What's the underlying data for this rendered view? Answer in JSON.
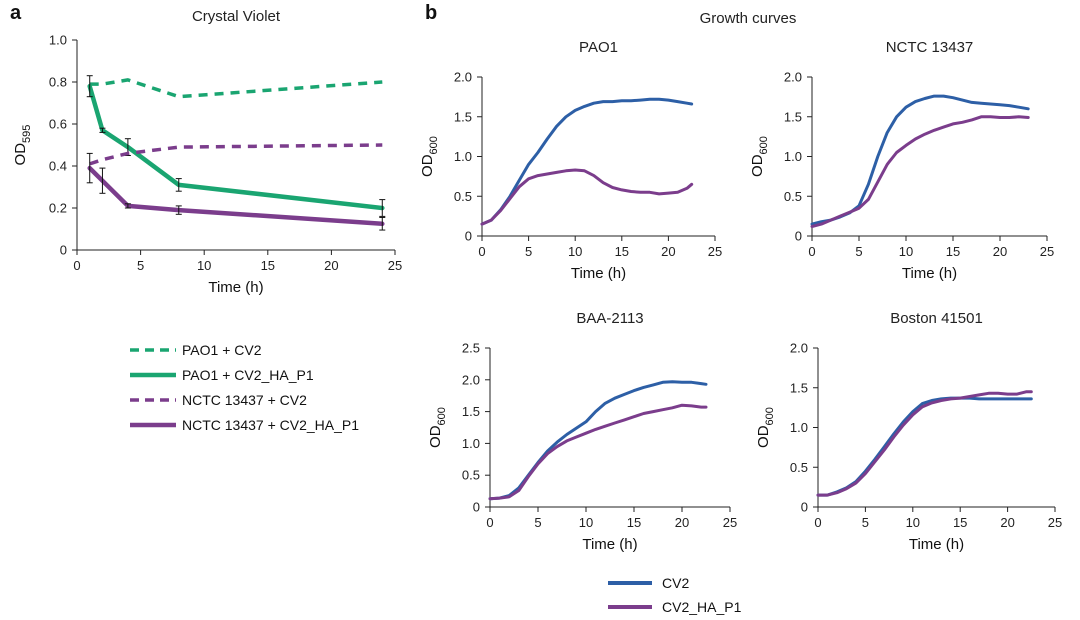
{
  "panel_a_letter": "a",
  "panel_b_letter": "b",
  "panel_b_title": "Growth curves",
  "colors": {
    "green": "#1aa571",
    "purple": "#7b3d8c",
    "blue": "#2d5fa6"
  },
  "legend_a": [
    {
      "label": "PAO1 + CV2",
      "color": "#1aa571",
      "dashed": true
    },
    {
      "label": "PAO1 + CV2_HA_P1",
      "color": "#1aa571",
      "dashed": false
    },
    {
      "label": "NCTC 13437 + CV2",
      "color": "#7b3d8c",
      "dashed": true
    },
    {
      "label": "NCTC 13437 + CV2_HA_P1",
      "color": "#7b3d8c",
      "dashed": false
    }
  ],
  "legend_b": [
    {
      "label": "CV2",
      "color": "#2d5fa6"
    },
    {
      "label": "CV2_HA_P1",
      "color": "#7b3d8c"
    }
  ],
  "chart_data": [
    {
      "type": "line",
      "title": "Crystal Violet",
      "xlabel": "Time (h)",
      "ylabel_main": "OD",
      "ylabel_sub": "595",
      "xlim": [
        0,
        25
      ],
      "ylim": [
        0,
        1.0
      ],
      "xticks": [
        "0",
        "5",
        "10",
        "15",
        "20",
        "25"
      ],
      "yticks": [
        "0",
        "0.2",
        "0.4",
        "0.6",
        "0.8",
        "1.0"
      ],
      "series": [
        {
          "name": "PAO1 + CV2",
          "color": "#1aa571",
          "dashed": true,
          "x": [
            1,
            2,
            4,
            8,
            24
          ],
          "y": [
            0.79,
            0.79,
            0.81,
            0.73,
            0.8
          ]
        },
        {
          "name": "PAO1 + CV2_HA_P1",
          "color": "#1aa571",
          "dashed": false,
          "x": [
            1,
            2,
            4,
            8,
            24
          ],
          "y": [
            0.78,
            0.57,
            0.49,
            0.31,
            0.2
          ],
          "err": [
            0.05,
            0.01,
            0.04,
            0.03,
            0.04
          ]
        },
        {
          "name": "NCTC 13437 + CV2",
          "color": "#7b3d8c",
          "dashed": true,
          "x": [
            1,
            2,
            4,
            8,
            24
          ],
          "y": [
            0.41,
            0.43,
            0.46,
            0.49,
            0.5
          ]
        },
        {
          "name": "NCTC 13437 + CV2_HA_P1",
          "color": "#7b3d8c",
          "dashed": false,
          "x": [
            1,
            2,
            4,
            8,
            24
          ],
          "y": [
            0.39,
            0.33,
            0.21,
            0.19,
            0.125
          ],
          "err": [
            0.07,
            0.06,
            0.01,
            0.02,
            0.03
          ]
        }
      ]
    },
    {
      "type": "line",
      "title": "PAO1",
      "xlabel": "Time (h)",
      "ylabel_main": "OD",
      "ylabel_sub": "600",
      "xlim": [
        0,
        25
      ],
      "ylim": [
        0,
        2.0
      ],
      "xticks": [
        "0",
        "5",
        "10",
        "15",
        "20",
        "25"
      ],
      "yticks": [
        "0",
        "0.5",
        "1.0",
        "1.5",
        "2.0"
      ],
      "series": [
        {
          "name": "CV2",
          "color": "#2d5fa6",
          "x": [
            0,
            1,
            2,
            3,
            4,
            5,
            6,
            7,
            8,
            9,
            10,
            11,
            12,
            13,
            14,
            15,
            16,
            17,
            18,
            19,
            20,
            21,
            22,
            22.5
          ],
          "y": [
            0.15,
            0.2,
            0.33,
            0.5,
            0.7,
            0.9,
            1.05,
            1.22,
            1.38,
            1.5,
            1.58,
            1.63,
            1.67,
            1.69,
            1.69,
            1.7,
            1.7,
            1.71,
            1.72,
            1.72,
            1.71,
            1.69,
            1.67,
            1.66
          ]
        },
        {
          "name": "CV2_HA_P1",
          "color": "#7b3d8c",
          "x": [
            0,
            1,
            2,
            3,
            4,
            5,
            6,
            7,
            8,
            9,
            10,
            11,
            12,
            13,
            14,
            15,
            16,
            17,
            18,
            19,
            20,
            21,
            22,
            22.5
          ],
          "y": [
            0.15,
            0.2,
            0.32,
            0.47,
            0.62,
            0.72,
            0.76,
            0.78,
            0.8,
            0.82,
            0.83,
            0.82,
            0.76,
            0.67,
            0.61,
            0.58,
            0.56,
            0.55,
            0.55,
            0.53,
            0.54,
            0.55,
            0.6,
            0.65
          ]
        }
      ]
    },
    {
      "type": "line",
      "title": "NCTC 13437",
      "xlabel": "Time (h)",
      "ylabel_main": "OD",
      "ylabel_sub": "600",
      "xlim": [
        0,
        25
      ],
      "ylim": [
        0,
        2.0
      ],
      "xticks": [
        "0",
        "5",
        "10",
        "15",
        "20",
        "25"
      ],
      "yticks": [
        "0",
        "0.5",
        "1.0",
        "1.5",
        "2.0"
      ],
      "series": [
        {
          "name": "CV2",
          "color": "#2d5fa6",
          "x": [
            0,
            1,
            2,
            3,
            4,
            5,
            6,
            7,
            8,
            9,
            10,
            11,
            12,
            13,
            14,
            15,
            16,
            17,
            18,
            19,
            20,
            21,
            22,
            23
          ],
          "y": [
            0.15,
            0.18,
            0.2,
            0.24,
            0.29,
            0.38,
            0.65,
            1.0,
            1.3,
            1.5,
            1.62,
            1.69,
            1.73,
            1.76,
            1.76,
            1.74,
            1.71,
            1.68,
            1.67,
            1.66,
            1.65,
            1.64,
            1.62,
            1.6
          ]
        },
        {
          "name": "CV2_HA_P1",
          "color": "#7b3d8c",
          "x": [
            0,
            1,
            2,
            3,
            4,
            5,
            6,
            7,
            8,
            9,
            10,
            11,
            12,
            13,
            14,
            15,
            16,
            17,
            18,
            19,
            20,
            21,
            22,
            23
          ],
          "y": [
            0.12,
            0.15,
            0.2,
            0.25,
            0.3,
            0.35,
            0.46,
            0.68,
            0.9,
            1.05,
            1.14,
            1.22,
            1.28,
            1.33,
            1.37,
            1.41,
            1.43,
            1.46,
            1.5,
            1.5,
            1.49,
            1.49,
            1.5,
            1.49
          ]
        }
      ]
    },
    {
      "type": "line",
      "title": "BAA-2113",
      "xlabel": "Time (h)",
      "ylabel_main": "OD",
      "ylabel_sub": "600",
      "xlim": [
        0,
        25
      ],
      "ylim": [
        0,
        2.5
      ],
      "xticks": [
        "0",
        "5",
        "10",
        "15",
        "20",
        "25"
      ],
      "yticks": [
        "0",
        "0.5",
        "1.0",
        "1.5",
        "2.0",
        "2.5"
      ],
      "series": [
        {
          "name": "CV2",
          "color": "#2d5fa6",
          "x": [
            0,
            1,
            2,
            3,
            4,
            5,
            6,
            7,
            8,
            9,
            10,
            11,
            12,
            13,
            14,
            15,
            16,
            17,
            18,
            19,
            20,
            21,
            22,
            22.5
          ],
          "y": [
            0.13,
            0.14,
            0.18,
            0.3,
            0.5,
            0.7,
            0.88,
            1.02,
            1.14,
            1.24,
            1.34,
            1.5,
            1.63,
            1.71,
            1.77,
            1.83,
            1.88,
            1.92,
            1.96,
            1.97,
            1.96,
            1.96,
            1.94,
            1.93
          ]
        },
        {
          "name": "CV2_HA_P1",
          "color": "#7b3d8c",
          "x": [
            0,
            1,
            2,
            3,
            4,
            5,
            6,
            7,
            8,
            9,
            10,
            11,
            12,
            13,
            14,
            15,
            16,
            17,
            18,
            19,
            20,
            21,
            22,
            22.5
          ],
          "y": [
            0.13,
            0.14,
            0.16,
            0.26,
            0.48,
            0.68,
            0.84,
            0.95,
            1.04,
            1.1,
            1.16,
            1.22,
            1.27,
            1.32,
            1.37,
            1.42,
            1.47,
            1.5,
            1.53,
            1.56,
            1.6,
            1.59,
            1.57,
            1.57
          ]
        }
      ]
    },
    {
      "type": "line",
      "title": "Boston 41501",
      "xlabel": "Time (h)",
      "ylabel_main": "OD",
      "ylabel_sub": "600",
      "xlim": [
        0,
        25
      ],
      "ylim": [
        0,
        2.0
      ],
      "xticks": [
        "0",
        "5",
        "10",
        "15",
        "20",
        "25"
      ],
      "yticks": [
        "0",
        "0.5",
        "1.0",
        "1.5",
        "2.0"
      ],
      "series": [
        {
          "name": "CV2",
          "color": "#2d5fa6",
          "x": [
            0,
            1,
            2,
            3,
            4,
            5,
            6,
            7,
            8,
            9,
            10,
            11,
            12,
            13,
            14,
            15,
            16,
            17,
            18,
            19,
            20,
            21,
            22,
            22.5
          ],
          "y": [
            0.15,
            0.15,
            0.19,
            0.24,
            0.32,
            0.45,
            0.6,
            0.76,
            0.92,
            1.07,
            1.2,
            1.3,
            1.34,
            1.36,
            1.37,
            1.37,
            1.37,
            1.36,
            1.36,
            1.36,
            1.36,
            1.36,
            1.36,
            1.36
          ]
        },
        {
          "name": "CV2_HA_P1",
          "color": "#7b3d8c",
          "x": [
            0,
            1,
            2,
            3,
            4,
            5,
            6,
            7,
            8,
            9,
            10,
            11,
            12,
            13,
            14,
            15,
            16,
            17,
            18,
            19,
            20,
            21,
            22,
            22.5
          ],
          "y": [
            0.15,
            0.15,
            0.18,
            0.23,
            0.3,
            0.42,
            0.57,
            0.72,
            0.88,
            1.03,
            1.16,
            1.26,
            1.31,
            1.34,
            1.36,
            1.37,
            1.39,
            1.41,
            1.43,
            1.43,
            1.42,
            1.42,
            1.45,
            1.45
          ]
        }
      ]
    }
  ]
}
